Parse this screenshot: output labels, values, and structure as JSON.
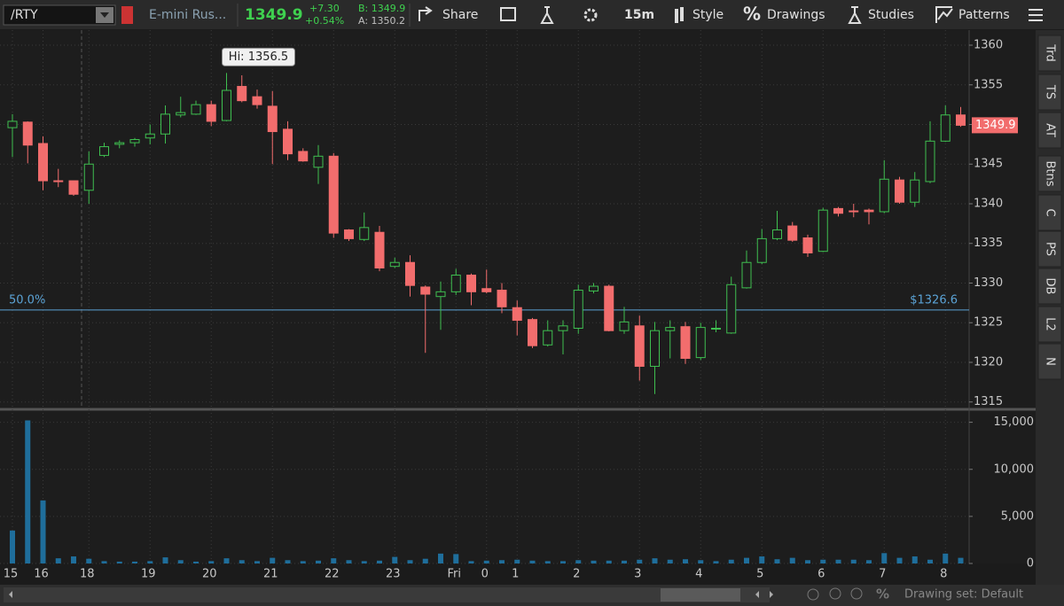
{
  "toolbar": {
    "symbol": "/RTY",
    "description": "E-mini Rus...",
    "last": "1349.9",
    "change": "+7.30",
    "change_pct": "+0.54%",
    "bid": "B: 1349.9",
    "ask": "A: 1350.2",
    "buttons": [
      "Share",
      "15m",
      "Style",
      "Drawings",
      "Studies",
      "Patterns"
    ]
  },
  "side_tabs": [
    "Trd",
    "TS",
    "AT",
    "Btns",
    "C",
    "PS",
    "DB",
    "L2",
    "N"
  ],
  "footer": {
    "drawing_set": "Drawing set: Default"
  },
  "chart_data": [
    {
      "type": "candlestick",
      "categories": [
        "15",
        null,
        "16",
        null,
        null,
        "18",
        null,
        null,
        null,
        "19",
        null,
        null,
        null,
        "20",
        null,
        null,
        null,
        "21",
        null,
        null,
        null,
        "22",
        null,
        null,
        null,
        "23",
        null,
        null,
        null,
        "Fri",
        null,
        "0",
        null,
        "1",
        null,
        null,
        null,
        "2",
        null,
        null,
        null,
        "3",
        null,
        null,
        null,
        "4",
        null,
        null,
        null,
        "5",
        null,
        null,
        null,
        "6",
        null,
        null,
        null,
        "7",
        null,
        null,
        null,
        "8",
        null
      ],
      "open": [
        1349.6,
        1350.3,
        1347.6,
        1342.9,
        1342.9,
        1341.7,
        1346.1,
        1347.5,
        1347.7,
        1348.3,
        1348.8,
        1351.2,
        1351.3,
        1352.5,
        1350.5,
        1354.8,
        1353.5,
        1352.3,
        1349.4,
        1346.6,
        1344.6,
        1346.0,
        1336.7,
        1335.5,
        1336.4,
        1332.1,
        1332.6,
        1329.5,
        1328.3,
        1328.9,
        1331.0,
        1329.3,
        1329.1,
        1326.9,
        1325.4,
        1322.2,
        1324.0,
        1324.3,
        1329.0,
        1329.6,
        1324.0,
        1324.6,
        1319.5,
        1324.0,
        1324.5,
        1320.6,
        1324.2,
        1323.7,
        1329.4,
        1332.6,
        1335.6,
        1337.2,
        1335.7,
        1334.0,
        1339.4,
        1339.1,
        1339.2,
        1339.0,
        1343.0,
        1340.2,
        1342.8,
        1347.9,
        1351.2
      ],
      "high": [
        1351.3,
        1350.4,
        1348.5,
        1344.4,
        1342.9,
        1346.6,
        1347.7,
        1348.0,
        1348.3,
        1350.0,
        1352.4,
        1353.5,
        1353.0,
        1353.0,
        1356.5,
        1356.2,
        1354.4,
        1354.2,
        1350.4,
        1347.0,
        1347.4,
        1346.4,
        1336.8,
        1338.9,
        1337.2,
        1333.2,
        1333.5,
        1329.7,
        1330.2,
        1331.8,
        1331.2,
        1331.7,
        1330.0,
        1327.8,
        1325.6,
        1325.3,
        1325.3,
        1329.8,
        1330.0,
        1329.8,
        1327.0,
        1325.9,
        1325.1,
        1325.3,
        1325.1,
        1325.0,
        1325.3,
        1330.8,
        1334.1,
        1336.8,
        1339.1,
        1337.7,
        1336.1,
        1339.5,
        1339.6,
        1340.0,
        1339.4,
        1345.5,
        1343.4,
        1344.0,
        1350.4,
        1352.4,
        1352.2
      ],
      "low": [
        1345.9,
        1345.1,
        1341.7,
        1342.1,
        1341.0,
        1340.0,
        1345.9,
        1347.0,
        1347.2,
        1347.5,
        1347.6,
        1350.9,
        1351.2,
        1349.8,
        1350.4,
        1352.8,
        1352.0,
        1345.0,
        1345.5,
        1345.3,
        1342.5,
        1335.7,
        1335.3,
        1335.3,
        1331.5,
        1331.9,
        1328.3,
        1321.2,
        1324.1,
        1328.5,
        1327.2,
        1328.7,
        1326.2,
        1323.4,
        1321.8,
        1322.0,
        1321.0,
        1323.6,
        1328.7,
        1323.9,
        1323.6,
        1317.7,
        1316.0,
        1320.5,
        1319.8,
        1320.3,
        1323.8,
        1323.6,
        1329.3,
        1332.4,
        1335.4,
        1335.2,
        1333.3,
        1333.9,
        1338.4,
        1338.3,
        1337.4,
        1338.8,
        1340.0,
        1339.6,
        1342.6,
        1347.8,
        1349.7
      ],
      "close": [
        1350.4,
        1347.4,
        1342.9,
        1342.8,
        1341.2,
        1345.0,
        1347.2,
        1347.7,
        1348.1,
        1348.8,
        1351.3,
        1351.5,
        1352.5,
        1350.4,
        1354.3,
        1353.0,
        1352.5,
        1349.1,
        1346.3,
        1345.4,
        1346.0,
        1336.3,
        1335.6,
        1337.0,
        1331.9,
        1332.6,
        1329.7,
        1328.6,
        1328.9,
        1331.0,
        1328.9,
        1328.9,
        1327.0,
        1325.3,
        1322.1,
        1324.0,
        1324.6,
        1329.1,
        1329.6,
        1324.0,
        1325.1,
        1319.5,
        1324.0,
        1324.4,
        1320.5,
        1324.4,
        1324.3,
        1329.8,
        1332.6,
        1335.6,
        1336.7,
        1335.4,
        1333.8,
        1339.2,
        1338.8,
        1339.0,
        1339.0,
        1343.1,
        1340.2,
        1343.0,
        1347.9,
        1351.2,
        1349.9
      ],
      "up_color": "#3fbf50",
      "down_color": "#f26d6d",
      "ylim": [
        1314.3,
        1361.9
      ],
      "yticks": [
        1315,
        1320,
        1325,
        1330,
        1335,
        1340,
        1345,
        1350,
        1355,
        1360
      ],
      "grid": true,
      "reference_line": {
        "value": 1326.6,
        "label": "$1326.6",
        "level": "50.0%",
        "color": "#5ba3d6"
      },
      "high_annotation": {
        "value": 1356.5,
        "label": "Hi: 1356.5"
      }
    },
    {
      "type": "bar",
      "values": [
        3500,
        15200,
        6700,
        550,
        750,
        500,
        250,
        200,
        200,
        250,
        650,
        350,
        200,
        250,
        550,
        350,
        250,
        600,
        350,
        250,
        300,
        550,
        350,
        250,
        300,
        700,
        350,
        500,
        1050,
        1000,
        250,
        300,
        350,
        400,
        300,
        250,
        250,
        350,
        300,
        300,
        300,
        400,
        550,
        400,
        450,
        350,
        250,
        400,
        600,
        750,
        450,
        600,
        350,
        400,
        400,
        400,
        350,
        1100,
        600,
        750,
        400,
        1050,
        600
      ],
      "color": "#1f6e9b",
      "ylim": [
        0,
        16000
      ],
      "yticks": [
        0,
        {
          "value": 5000,
          "label": "5,000"
        },
        {
          "value": 10000,
          "label": "10,000"
        },
        {
          "value": 15000,
          "label": "15,000"
        }
      ],
      "grid": true
    }
  ]
}
